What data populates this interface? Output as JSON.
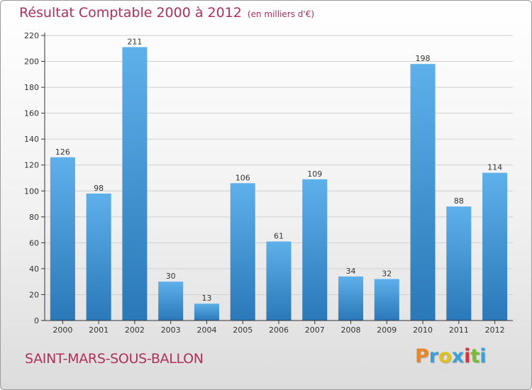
{
  "header": {
    "title": "Résultat Comptable 2000 à 2012",
    "unit": "(en milliers d'€)"
  },
  "footer": {
    "commune": "SAINT-MARS-SOUS-BALLON",
    "brand": "Proxiti",
    "brand_colors": [
      "#e8862a",
      "#3aa0d8",
      "#e0c21c",
      "#3aa0d8",
      "#d8323c",
      "#7ab83a",
      "#3aa0d8"
    ]
  },
  "colors": {
    "title": "#b0305a",
    "bar_light": "#5eb0ea",
    "bar_dark": "#2a78b8",
    "axis": "#333333",
    "grid": "#d0d0d0"
  },
  "chart_data": {
    "type": "bar",
    "title": "Résultat Comptable 2000 à 2012",
    "ylabel": "(en milliers d'€)",
    "xlabel": "",
    "categories": [
      "2000",
      "2001",
      "2002",
      "2003",
      "2004",
      "2005",
      "2006",
      "2007",
      "2008",
      "2009",
      "2010",
      "2011",
      "2012"
    ],
    "values": [
      126,
      98,
      211,
      30,
      13,
      106,
      61,
      109,
      34,
      32,
      198,
      88,
      114
    ],
    "ylim": [
      0,
      220
    ],
    "yticks": [
      0,
      20,
      40,
      60,
      80,
      100,
      120,
      140,
      160,
      180,
      200,
      220
    ],
    "grid": true,
    "data_labels": true
  }
}
